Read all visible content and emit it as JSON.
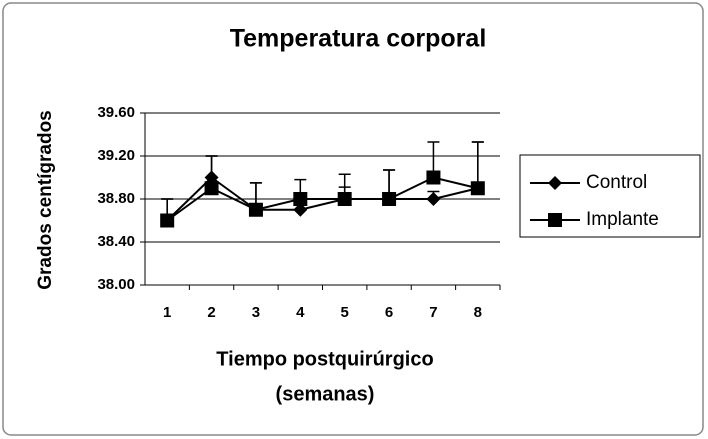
{
  "chart_data": {
    "type": "line",
    "title": "Temperatura corporal",
    "x_label": [
      "Tiempo postquirúrgico",
      "(semanas)"
    ],
    "y_label": "Grados centígrados",
    "categories": [
      "1",
      "2",
      "3",
      "4",
      "5",
      "6",
      "7",
      "8"
    ],
    "series": [
      {
        "name": "Control",
        "color": "#000000",
        "marker": "diamond",
        "values": [
          38.6,
          39.0,
          38.7,
          38.7,
          38.8,
          38.8,
          38.8,
          38.9
        ],
        "errors": [
          0.2,
          0.2,
          0.25,
          0.1,
          0.11,
          0.27,
          0.07,
          0.43
        ]
      },
      {
        "name": "Implante",
        "color": "#000000",
        "marker": "square",
        "values": [
          38.6,
          38.9,
          38.7,
          38.8,
          38.8,
          38.8,
          39.0,
          38.9
        ],
        "errors": [
          0.2,
          0.3,
          0.25,
          0.18,
          0.23,
          0.27,
          0.33,
          0.43
        ]
      }
    ],
    "ylim": [
      38.0,
      39.6
    ],
    "yticks": [
      {
        "value": 38.0,
        "label": "38.00"
      },
      {
        "value": 38.4,
        "label": "38.40"
      },
      {
        "value": 38.8,
        "label": "38.80"
      },
      {
        "value": 39.2,
        "label": "39.20"
      },
      {
        "value": 39.6,
        "label": "39.60"
      }
    ],
    "grid": true,
    "legend": "right"
  }
}
